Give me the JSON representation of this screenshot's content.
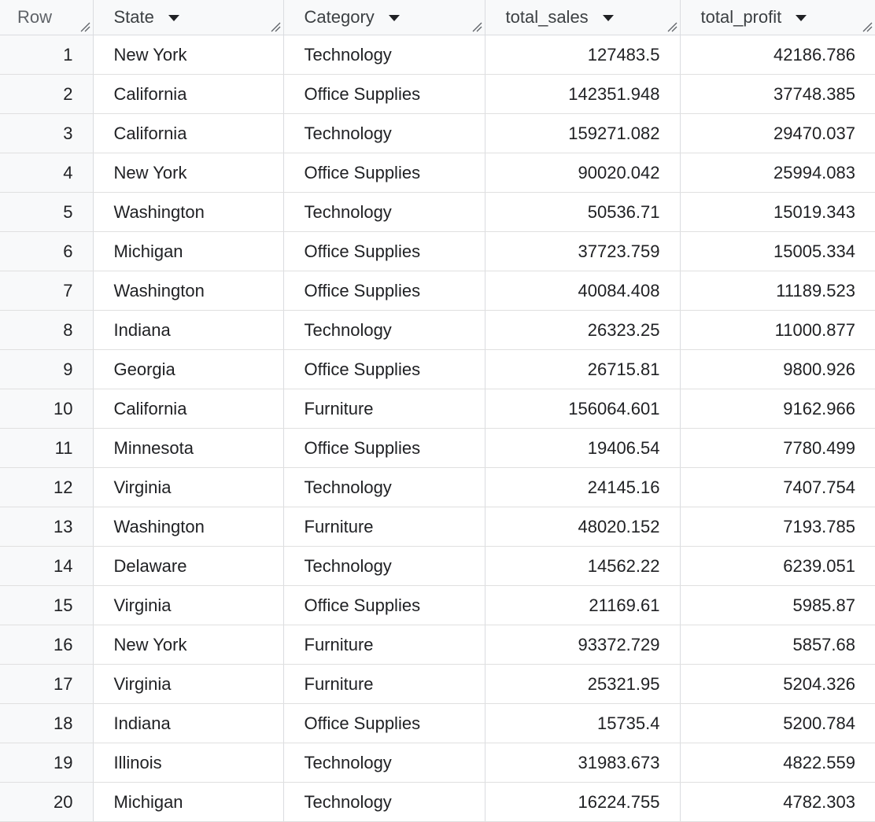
{
  "table": {
    "columns": [
      {
        "label": "Row",
        "sortable": false
      },
      {
        "label": "State",
        "sortable": true
      },
      {
        "label": "Category",
        "sortable": true
      },
      {
        "label": "total_sales",
        "sortable": true
      },
      {
        "label": "total_profit",
        "sortable": true
      }
    ],
    "rows": [
      {
        "row": "1",
        "state": "New York",
        "category": "Technology",
        "total_sales": "127483.5",
        "total_profit": "42186.786"
      },
      {
        "row": "2",
        "state": "California",
        "category": "Office Supplies",
        "total_sales": "142351.948",
        "total_profit": "37748.385"
      },
      {
        "row": "3",
        "state": "California",
        "category": "Technology",
        "total_sales": "159271.082",
        "total_profit": "29470.037"
      },
      {
        "row": "4",
        "state": "New York",
        "category": "Office Supplies",
        "total_sales": "90020.042",
        "total_profit": "25994.083"
      },
      {
        "row": "5",
        "state": "Washington",
        "category": "Technology",
        "total_sales": "50536.71",
        "total_profit": "15019.343"
      },
      {
        "row": "6",
        "state": "Michigan",
        "category": "Office Supplies",
        "total_sales": "37723.759",
        "total_profit": "15005.334"
      },
      {
        "row": "7",
        "state": "Washington",
        "category": "Office Supplies",
        "total_sales": "40084.408",
        "total_profit": "11189.523"
      },
      {
        "row": "8",
        "state": "Indiana",
        "category": "Technology",
        "total_sales": "26323.25",
        "total_profit": "11000.877"
      },
      {
        "row": "9",
        "state": "Georgia",
        "category": "Office Supplies",
        "total_sales": "26715.81",
        "total_profit": "9800.926"
      },
      {
        "row": "10",
        "state": "California",
        "category": "Furniture",
        "total_sales": "156064.601",
        "total_profit": "9162.966"
      },
      {
        "row": "11",
        "state": "Minnesota",
        "category": "Office Supplies",
        "total_sales": "19406.54",
        "total_profit": "7780.499"
      },
      {
        "row": "12",
        "state": "Virginia",
        "category": "Technology",
        "total_sales": "24145.16",
        "total_profit": "7407.754"
      },
      {
        "row": "13",
        "state": "Washington",
        "category": "Furniture",
        "total_sales": "48020.152",
        "total_profit": "7193.785"
      },
      {
        "row": "14",
        "state": "Delaware",
        "category": "Technology",
        "total_sales": "14562.22",
        "total_profit": "6239.051"
      },
      {
        "row": "15",
        "state": "Virginia",
        "category": "Office Supplies",
        "total_sales": "21169.61",
        "total_profit": "5985.87"
      },
      {
        "row": "16",
        "state": "New York",
        "category": "Furniture",
        "total_sales": "93372.729",
        "total_profit": "5857.68"
      },
      {
        "row": "17",
        "state": "Virginia",
        "category": "Furniture",
        "total_sales": "25321.95",
        "total_profit": "5204.326"
      },
      {
        "row": "18",
        "state": "Indiana",
        "category": "Office Supplies",
        "total_sales": "15735.4",
        "total_profit": "5200.784"
      },
      {
        "row": "19",
        "state": "Illinois",
        "category": "Technology",
        "total_sales": "31983.673",
        "total_profit": "4822.559"
      },
      {
        "row": "20",
        "state": "Michigan",
        "category": "Technology",
        "total_sales": "16224.755",
        "total_profit": "4782.303"
      }
    ]
  },
  "colors": {
    "header_bg": "#f8f9fa",
    "row_num_bg": "#f8f9fa",
    "border": "#dadce0",
    "text": "#202124"
  },
  "icons": {
    "sort": "caret-down-icon",
    "resize": "column-resize-handle-icon"
  }
}
